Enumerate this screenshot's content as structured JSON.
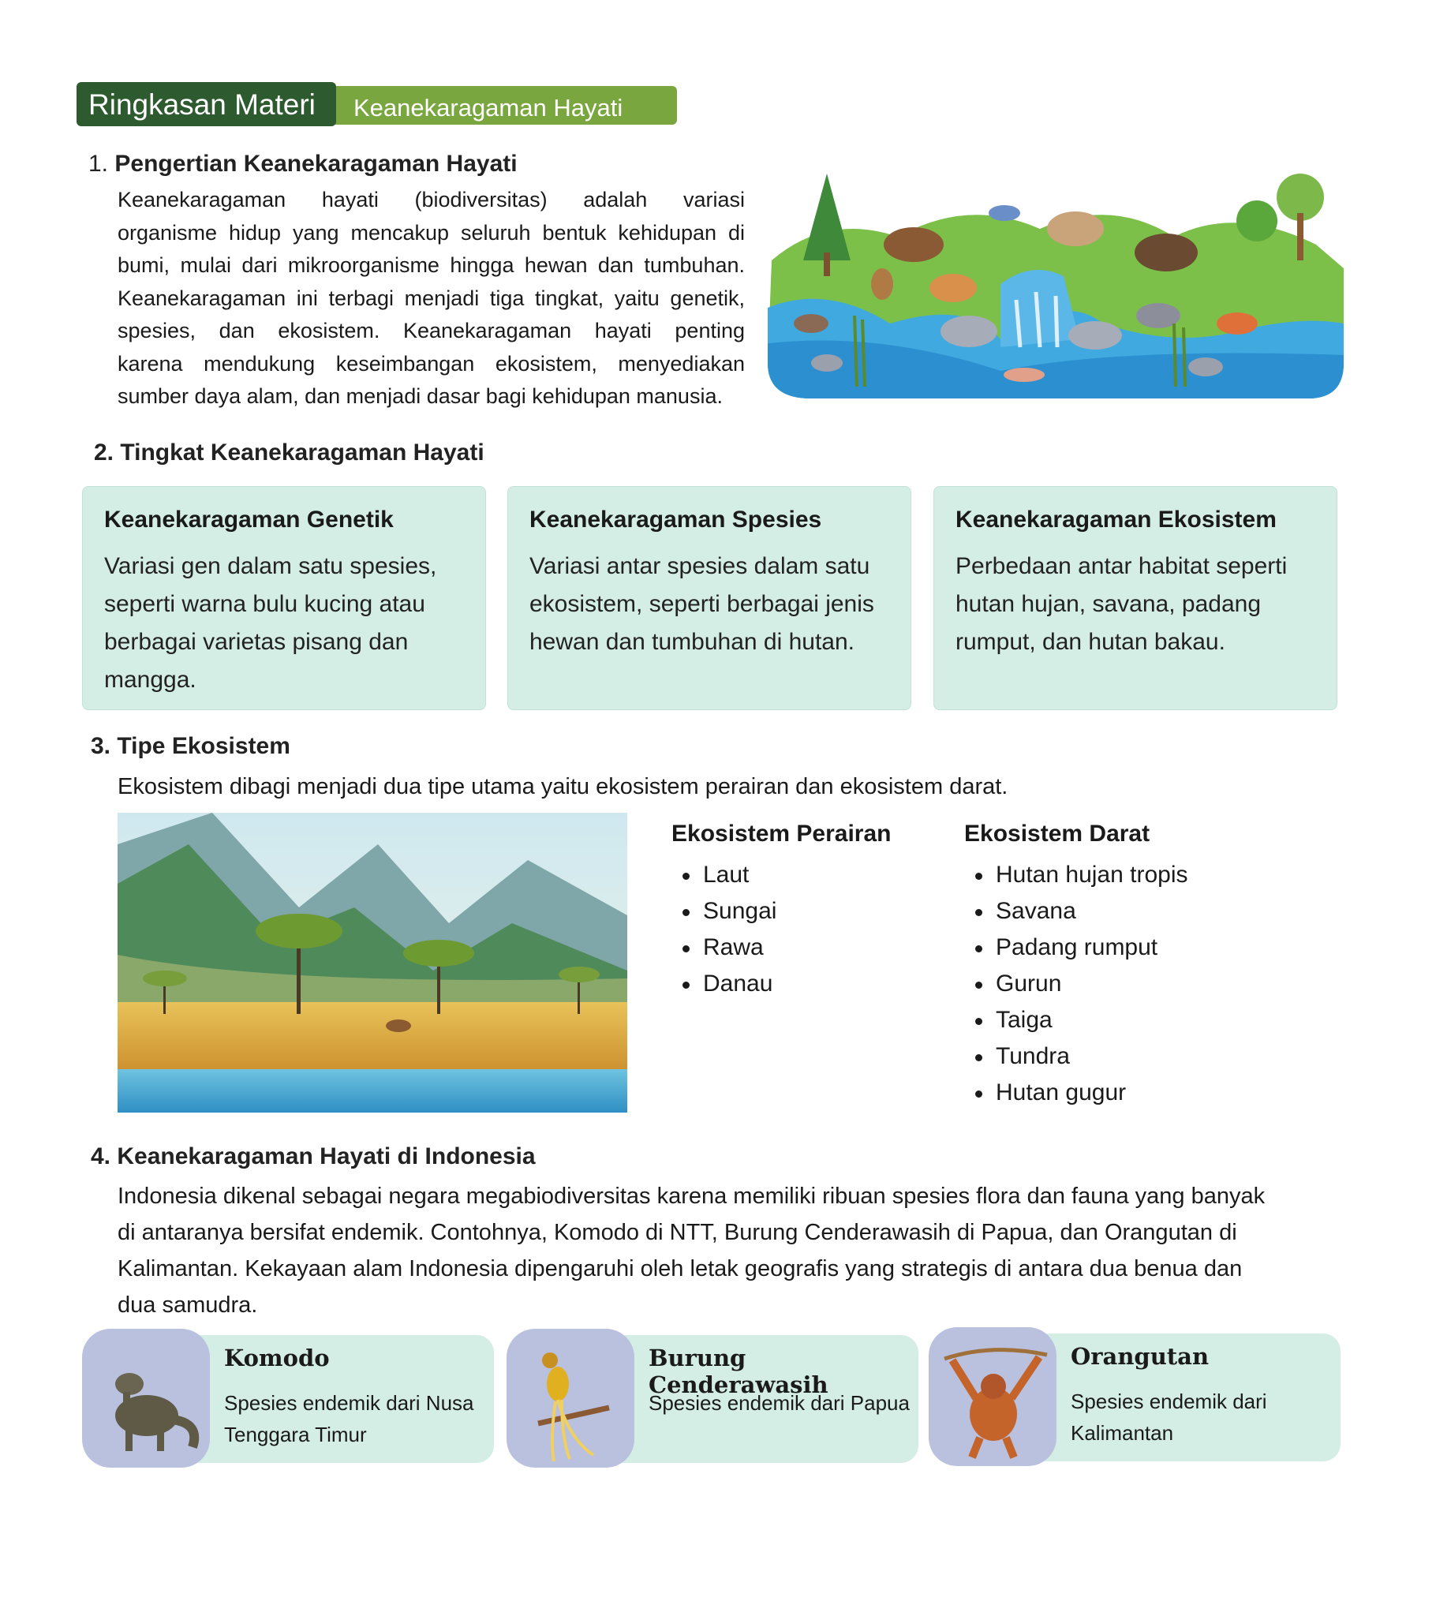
{
  "header": {
    "title": "Ringkasan Materi",
    "subtitle": "Keanekaragaman Hayati"
  },
  "section1": {
    "number": "1.",
    "title": "Pengertian Keanekaragaman Hayati",
    "lines": [
      "Keanekaragaman hayati (biodiversitas) adalah variasi",
      "organisme hidup yang mencakup seluruh bentuk kehidupan di",
      "bumi, mulai dari mikroorganisme hingga hewan dan tumbuhan.",
      "Keanekaragaman ini terbagi menjadi tiga tingkat, yaitu genetik,",
      "spesies, dan ekosistem. Keanekaragaman hayati penting",
      "karena mendukung keseimbangan ekosistem, menyediakan",
      "sumber daya alam, dan menjadi dasar bagi kehidupan manusia."
    ]
  },
  "section2": {
    "title": "2. Tingkat Keanekaragaman Hayati",
    "cards": [
      {
        "title": "Keanekaragaman Genetik",
        "text": "Variasi gen dalam satu spesies, seperti warna bulu kucing atau berbagai varietas pisang dan mangga."
      },
      {
        "title": "Keanekaragaman Spesies",
        "text": "Variasi antar spesies dalam satu ekosistem, seperti berbagai jenis hewan dan tumbuhan di hutan."
      },
      {
        "title": "Keanekaragaman Ekosistem",
        "text": "Perbedaan antar habitat seperti hutan hujan, savana, padang rumput, dan hutan bakau."
      }
    ]
  },
  "section3": {
    "title": "3. Tipe Ekosistem",
    "intro": "Ekosistem dibagi menjadi dua tipe utama yaitu ekosistem perairan dan ekosistem darat.",
    "perairan": {
      "title": "Ekosistem Perairan",
      "items": [
        "Laut",
        "Sungai",
        "Rawa",
        "Danau"
      ]
    },
    "darat": {
      "title": "Ekosistem Darat",
      "items": [
        "Hutan hujan tropis",
        "Savana",
        "Padang rumput",
        "Gurun",
        "Taiga",
        "Tundra",
        "Hutan gugur"
      ]
    }
  },
  "section4": {
    "title": "4. Keanekaragaman Hayati di Indonesia",
    "lines": [
      "Indonesia dikenal sebagai negara megabiodiversitas karena memiliki ribuan spesies flora dan fauna yang banyak",
      "di antaranya bersifat endemik. Contohnya, Komodo di NTT, Burung Cenderawasih di Papua, dan Orangutan di",
      "Kalimantan. Kekayaan alam Indonesia dipengaruhi oleh letak geografis yang strategis di antara dua benua dan",
      "dua samudra."
    ],
    "species": [
      {
        "name": "Komodo",
        "desc": "Spesies endemik dari Nusa Tenggara Timur",
        "icon": "komodo-icon"
      },
      {
        "name": "Burung Cenderawasih",
        "desc": "Spesies endemik dari Papua",
        "icon": "bird-of-paradise-icon"
      },
      {
        "name": "Orangutan",
        "desc": "Spesies endemik dari Kalimantan",
        "icon": "orangutan-icon"
      }
    ]
  },
  "colors": {
    "banner_dark": "#2e5a30",
    "banner_light": "#79a63e",
    "card_bg": "#d4eee5",
    "thumb_bg": "#b9c1df"
  }
}
